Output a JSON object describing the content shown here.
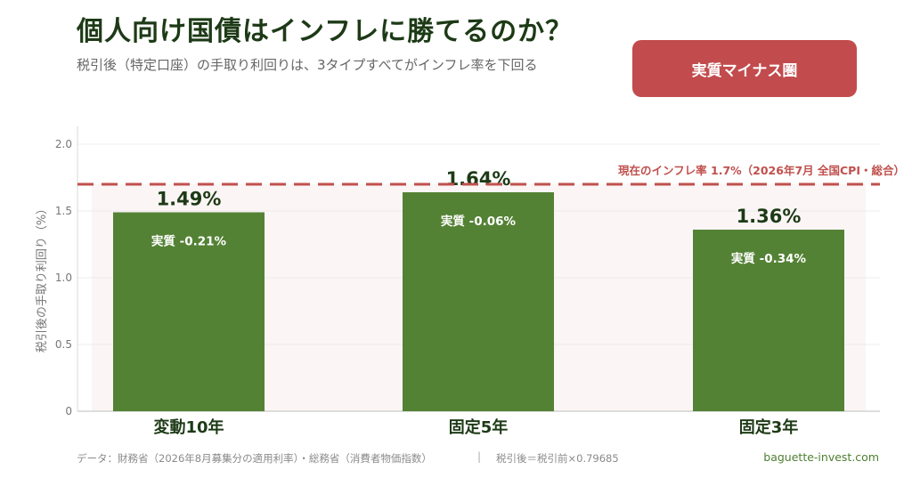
{
  "header": {
    "title": "個人向け国債はインフレに勝てるのか？",
    "subtitle": "税引後（特定口座）の手取り利回りは、3タイプすべてがインフレ率を下回る",
    "badge": "実質マイナス圏"
  },
  "footer": {
    "source": "データ：財務省（2026年8月募集分の適用利率）・総務省（消費者物価指数）",
    "separator": "|",
    "formula": "税引後＝税引前×0.79685",
    "site": "baguette-invest.com"
  },
  "colors": {
    "bar": "#548235",
    "inflation_line": "#c0504d",
    "badge": "#c24b4d",
    "value_label": "#1d3a16",
    "category_label": "#1d3a16"
  },
  "chart_data": {
    "type": "bar",
    "categories": [
      "変動10年",
      "固定5年",
      "固定3年"
    ],
    "values": [
      1.49,
      1.64,
      1.36
    ],
    "value_labels": [
      "1.49%",
      "1.64%",
      "1.36%"
    ],
    "inner_labels": [
      "実質 -0.21%",
      "実質 -0.06%",
      "実質 -0.34%"
    ],
    "ylabel": "税引後の手取り利回り（%）",
    "xlabel": "",
    "ylim": [
      0,
      2.0
    ],
    "yticks": [
      0,
      0.5,
      1.0,
      1.5,
      2.0
    ],
    "ytick_labels": [
      "0",
      "0.5",
      "1.0",
      "1.5",
      "2.0"
    ],
    "grid": true,
    "reference_line": {
      "value": 1.7,
      "label": "現在のインフレ率 1.7%（2026年7月 全国CPI・総合）",
      "style": "dashed"
    }
  }
}
